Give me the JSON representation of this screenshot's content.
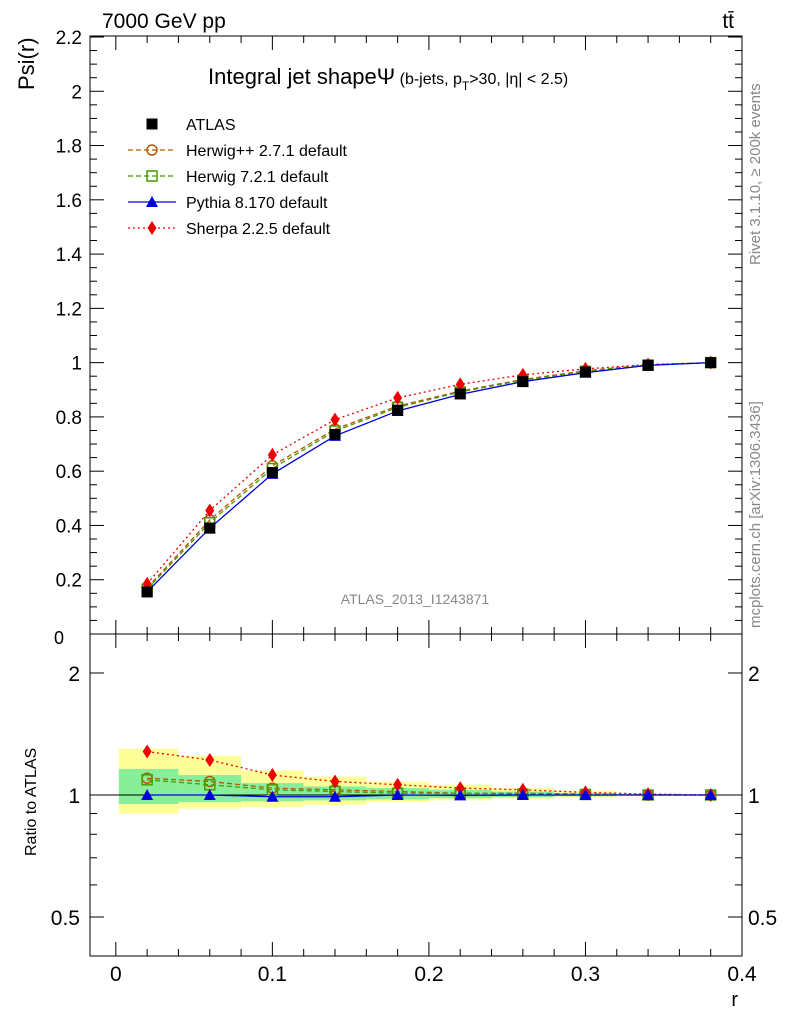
{
  "header": {
    "left": "7000 GeV pp",
    "right": "tt̄"
  },
  "side_labels": {
    "top": "Rivet 3.1.10, ≥ 200k events",
    "bottom": "mcplots.cern.ch [arXiv:1306.3436]"
  },
  "watermark": "ATLAS_2013_I1243871",
  "chart_data": [
    {
      "type": "line",
      "title": "Integral jet shapeΨ (b-jets, p_T>30, |η| < 2.5)",
      "title_main": "Integral jet shapeΨ",
      "title_sub_a": " (b-jets, p",
      "title_sub_sub": "T",
      "title_sub_b": ">30, |η| < 2.5)",
      "xlabel": "r",
      "ylabel": "Psi(r)",
      "xlim": [
        0,
        0.4
      ],
      "ylim": [
        0,
        2.2
      ],
      "yticks": [
        "0.2",
        "0.4",
        "0.6",
        "0.8",
        "1",
        "1.2",
        "1.4",
        "1.6",
        "1.8",
        "2",
        "2.2"
      ],
      "y0_label": "0",
      "legend_position": "top-left",
      "x": [
        0.02,
        0.06,
        0.1,
        0.14,
        0.18,
        0.22,
        0.26,
        0.3,
        0.34,
        0.38
      ],
      "series": [
        {
          "name": "ATLAS",
          "color": "#000000",
          "marker": "square-filled",
          "line": "none",
          "values": [
            0.155,
            0.39,
            0.595,
            0.735,
            0.825,
            0.885,
            0.93,
            0.965,
            0.99,
            1.0
          ]
        },
        {
          "name": "Herwig++ 2.7.1 default",
          "color": "#b35900",
          "marker": "circle-open",
          "line": "dashed",
          "values": [
            0.17,
            0.42,
            0.62,
            0.755,
            0.84,
            0.895,
            0.938,
            0.97,
            0.992,
            1.0
          ]
        },
        {
          "name": "Herwig 7.2.1 default",
          "color": "#4d9a00",
          "marker": "square-open",
          "line": "dashed",
          "values": [
            0.165,
            0.41,
            0.61,
            0.748,
            0.835,
            0.892,
            0.935,
            0.968,
            0.991,
            1.0
          ]
        },
        {
          "name": "Pythia 8.170 default",
          "color": "#0000dd",
          "marker": "triangle-filled",
          "line": "solid",
          "values": [
            0.155,
            0.39,
            0.59,
            0.73,
            0.822,
            0.883,
            0.93,
            0.963,
            0.99,
            1.0
          ]
        },
        {
          "name": "Sherpa 2.2.5 default",
          "color": "#ee0000",
          "marker": "diamond-filled",
          "line": "dotted",
          "values": [
            0.185,
            0.455,
            0.66,
            0.79,
            0.87,
            0.92,
            0.955,
            0.977,
            0.993,
            1.0
          ]
        }
      ]
    },
    {
      "type": "line",
      "ylabel": "Ratio to ATLAS",
      "xlabel": "r",
      "xlim": [
        0,
        0.4
      ],
      "ylim": [
        0.4,
        2.3
      ],
      "ylog": true,
      "yticks": [
        "0.5",
        "1",
        "2"
      ],
      "xticks": [
        "0",
        "0.1",
        "0.2",
        "0.3",
        "0.4"
      ],
      "x": [
        0.02,
        0.06,
        0.1,
        0.14,
        0.18,
        0.22,
        0.26,
        0.3,
        0.34,
        0.38
      ],
      "bands": {
        "bin_edges": [
          0.0,
          0.04,
          0.08,
          0.12,
          0.16,
          0.2,
          0.24,
          0.28,
          0.32,
          0.36,
          0.4
        ],
        "yellow_low": [
          0.9,
          0.925,
          0.935,
          0.945,
          0.96,
          0.97,
          0.98,
          0.988,
          0.994,
          1.0
        ],
        "yellow_high": [
          1.3,
          1.25,
          1.15,
          1.11,
          1.08,
          1.06,
          1.04,
          1.025,
          1.01,
          1.0
        ],
        "green_low": [
          0.95,
          0.96,
          0.965,
          0.97,
          0.975,
          0.982,
          0.988,
          0.993,
          0.997,
          1.0
        ],
        "green_high": [
          1.16,
          1.12,
          1.07,
          1.05,
          1.04,
          1.03,
          1.02,
          1.012,
          1.005,
          1.0
        ]
      },
      "series": [
        {
          "name": "Herwig++ 2.7.1 default",
          "color": "#b35900",
          "marker": "circle-open",
          "line": "dashed",
          "values": [
            1.1,
            1.08,
            1.04,
            1.03,
            1.02,
            1.01,
            1.01,
            1.005,
            1.0,
            1.0
          ]
        },
        {
          "name": "Herwig 7.2.1 default",
          "color": "#4d9a00",
          "marker": "square-open",
          "line": "dashed",
          "values": [
            1.09,
            1.06,
            1.03,
            1.02,
            1.01,
            1.01,
            1.005,
            1.003,
            1.0,
            1.0
          ]
        },
        {
          "name": "Pythia 8.170 default",
          "color": "#0000dd",
          "marker": "triangle-filled",
          "line": "solid",
          "values": [
            1.0,
            1.0,
            0.99,
            0.99,
            1.0,
            0.998,
            1.0,
            1.0,
            1.0,
            1.0
          ]
        },
        {
          "name": "Sherpa 2.2.5 default",
          "color": "#ee0000",
          "marker": "diamond-filled",
          "line": "dotted",
          "values": [
            1.28,
            1.22,
            1.12,
            1.08,
            1.06,
            1.04,
            1.03,
            1.015,
            1.005,
            1.0
          ]
        }
      ]
    }
  ]
}
